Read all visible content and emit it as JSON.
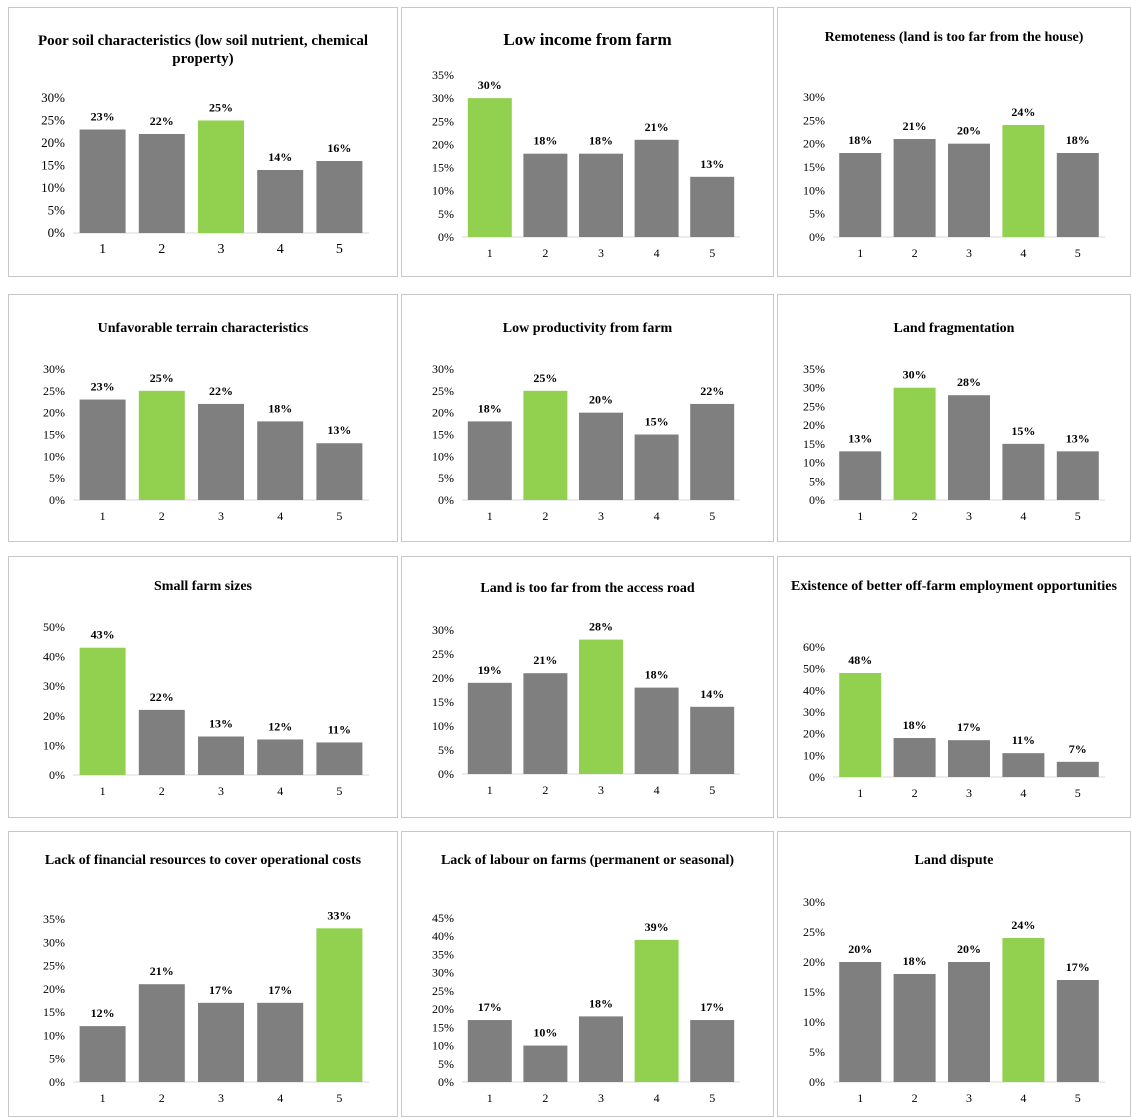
{
  "colors": {
    "bar": "#7f7f7f",
    "highlight": "#92d050",
    "axis": "#d9d9d9"
  },
  "chart_data": [
    {
      "type": "bar",
      "title": "Poor soil characteristics (low soil nutrient, chemical property)",
      "categories": [
        "1",
        "2",
        "3",
        "4",
        "5"
      ],
      "values": [
        23,
        22,
        25,
        14,
        16
      ],
      "value_labels": [
        "23%",
        "22%",
        "25%",
        "14%",
        "16%"
      ],
      "highlight_index": 2,
      "ylim": [
        0,
        30
      ],
      "yticks": [
        "0%",
        "5%",
        "10%",
        "15%",
        "20%",
        "25%",
        "30%"
      ],
      "ystep": 5,
      "xlabel": "",
      "ylabel": "",
      "grid": false
    },
    {
      "type": "bar",
      "title": "Low income from farm",
      "categories": [
        "1",
        "2",
        "3",
        "4",
        "5"
      ],
      "values": [
        30,
        18,
        18,
        21,
        13
      ],
      "value_labels": [
        "30%",
        "18%",
        "18%",
        "21%",
        "13%"
      ],
      "highlight_index": 0,
      "ylim": [
        0,
        35
      ],
      "yticks": [
        "0%",
        "5%",
        "10%",
        "15%",
        "20%",
        "25%",
        "30%",
        "35%"
      ],
      "ystep": 5,
      "xlabel": "",
      "ylabel": "",
      "grid": false
    },
    {
      "type": "bar",
      "title": "Remoteness (land is too far from the house)",
      "categories": [
        "1",
        "2",
        "3",
        "4",
        "5"
      ],
      "values": [
        18,
        21,
        20,
        24,
        18
      ],
      "value_labels": [
        "18%",
        "21%",
        "20%",
        "24%",
        "18%"
      ],
      "highlight_index": 3,
      "ylim": [
        0,
        30
      ],
      "yticks": [
        "0%",
        "5%",
        "10%",
        "15%",
        "20%",
        "25%",
        "30%"
      ],
      "ystep": 5,
      "xlabel": "",
      "ylabel": "",
      "grid": false
    },
    {
      "type": "bar",
      "title": "Unfavorable terrain characteristics",
      "categories": [
        "1",
        "2",
        "3",
        "4",
        "5"
      ],
      "values": [
        23,
        25,
        22,
        18,
        13
      ],
      "value_labels": [
        "23%",
        "25%",
        "22%",
        "18%",
        "13%"
      ],
      "highlight_index": 1,
      "ylim": [
        0,
        30
      ],
      "yticks": [
        "0%",
        "5%",
        "10%",
        "15%",
        "20%",
        "25%",
        "30%"
      ],
      "ystep": 5,
      "xlabel": "",
      "ylabel": "",
      "grid": false
    },
    {
      "type": "bar",
      "title": "Low productivity from farm",
      "categories": [
        "1",
        "2",
        "3",
        "4",
        "5"
      ],
      "values": [
        18,
        25,
        20,
        15,
        22
      ],
      "value_labels": [
        "18%",
        "25%",
        "20%",
        "15%",
        "22%"
      ],
      "highlight_index": 1,
      "ylim": [
        0,
        30
      ],
      "yticks": [
        "0%",
        "5%",
        "10%",
        "15%",
        "20%",
        "25%",
        "30%"
      ],
      "ystep": 5,
      "xlabel": "",
      "ylabel": "",
      "grid": false
    },
    {
      "type": "bar",
      "title": "Land fragmentation",
      "categories": [
        "1",
        "2",
        "3",
        "4",
        "5"
      ],
      "values": [
        13,
        30,
        28,
        15,
        13
      ],
      "value_labels": [
        "13%",
        "30%",
        "28%",
        "15%",
        "13%"
      ],
      "highlight_index": 1,
      "ylim": [
        0,
        35
      ],
      "yticks": [
        "0%",
        "5%",
        "10%",
        "15%",
        "20%",
        "25%",
        "30%",
        "35%"
      ],
      "ystep": 5,
      "xlabel": "",
      "ylabel": "",
      "grid": false
    },
    {
      "type": "bar",
      "title": "Small farm sizes",
      "categories": [
        "1",
        "2",
        "3",
        "4",
        "5"
      ],
      "values": [
        43,
        22,
        13,
        12,
        11
      ],
      "value_labels": [
        "43%",
        "22%",
        "13%",
        "12%",
        "11%"
      ],
      "highlight_index": 0,
      "ylim": [
        0,
        50
      ],
      "yticks": [
        "0%",
        "10%",
        "20%",
        "30%",
        "40%",
        "50%"
      ],
      "ystep": 10,
      "xlabel": "",
      "ylabel": "",
      "grid": false
    },
    {
      "type": "bar",
      "title": "Land is too far from the access road",
      "categories": [
        "1",
        "2",
        "3",
        "4",
        "5"
      ],
      "values": [
        19,
        21,
        28,
        18,
        14
      ],
      "value_labels": [
        "19%",
        "21%",
        "28%",
        "18%",
        "14%"
      ],
      "highlight_index": 2,
      "ylim": [
        0,
        30
      ],
      "yticks": [
        "0%",
        "5%",
        "10%",
        "15%",
        "20%",
        "25%",
        "30%"
      ],
      "ystep": 5,
      "xlabel": "",
      "ylabel": "",
      "grid": false
    },
    {
      "type": "bar",
      "title": "Existence of better off-farm employment opportunities",
      "categories": [
        "1",
        "2",
        "3",
        "4",
        "5"
      ],
      "values": [
        48,
        18,
        17,
        11,
        7
      ],
      "value_labels": [
        "48%",
        "18%",
        "17%",
        "11%",
        "7%"
      ],
      "highlight_index": 0,
      "ylim": [
        0,
        60
      ],
      "yticks": [
        "0%",
        "10%",
        "20%",
        "30%",
        "40%",
        "50%",
        "60%"
      ],
      "ystep": 10,
      "xlabel": "",
      "ylabel": "",
      "grid": false
    },
    {
      "type": "bar",
      "title": "Lack of financial resources to cover operational costs",
      "categories": [
        "1",
        "2",
        "3",
        "4",
        "5"
      ],
      "values": [
        12,
        21,
        17,
        17,
        33
      ],
      "value_labels": [
        "12%",
        "21%",
        "17%",
        "17%",
        "33%"
      ],
      "highlight_index": 4,
      "ylim": [
        0,
        35
      ],
      "yticks": [
        "0%",
        "5%",
        "10%",
        "15%",
        "20%",
        "25%",
        "30%",
        "35%"
      ],
      "ystep": 5,
      "xlabel": "",
      "ylabel": "",
      "grid": false
    },
    {
      "type": "bar",
      "title": "Lack of labour on farms (permanent or seasonal)",
      "categories": [
        "1",
        "2",
        "3",
        "4",
        "5"
      ],
      "values": [
        17,
        10,
        18,
        39,
        17
      ],
      "value_labels": [
        "17%",
        "10%",
        "18%",
        "39%",
        "17%"
      ],
      "highlight_index": 3,
      "ylim": [
        0,
        45
      ],
      "yticks": [
        "0%",
        "5%",
        "10%",
        "15%",
        "20%",
        "25%",
        "30%",
        "35%",
        "40%",
        "45%"
      ],
      "ystep": 5,
      "xlabel": "",
      "ylabel": "",
      "grid": false
    },
    {
      "type": "bar",
      "title": "Land dispute",
      "categories": [
        "1",
        "2",
        "3",
        "4",
        "5"
      ],
      "values": [
        20,
        18,
        20,
        24,
        17
      ],
      "value_labels": [
        "20%",
        "18%",
        "20%",
        "24%",
        "17%"
      ],
      "highlight_index": 3,
      "ylim": [
        0,
        30
      ],
      "yticks": [
        "0%",
        "5%",
        "10%",
        "15%",
        "20%",
        "25%",
        "30%"
      ],
      "ystep": 5,
      "xlabel": "",
      "ylabel": "",
      "grid": false
    }
  ]
}
